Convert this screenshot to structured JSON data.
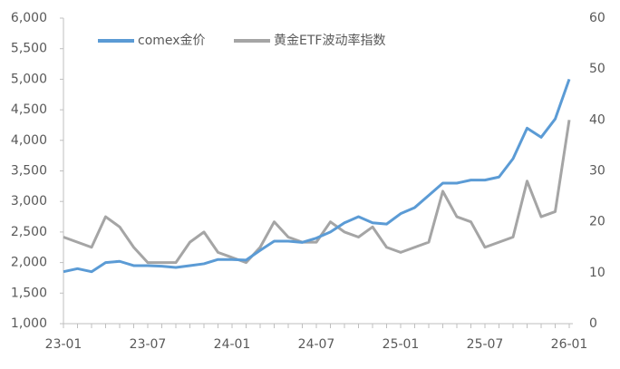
{
  "chart_data": {
    "type": "line",
    "categories": [
      "23-01",
      null,
      null,
      null,
      null,
      null,
      "23-07",
      null,
      null,
      null,
      null,
      null,
      "24-01",
      null,
      null,
      null,
      null,
      null,
      "24-07",
      null,
      null,
      null,
      null,
      null,
      "25-01",
      null,
      null,
      null,
      null,
      null,
      "25-07",
      null,
      null,
      null,
      null,
      null,
      "26-01"
    ],
    "series": [
      {
        "name": "comex金价",
        "color": "#5b9bd5",
        "values": [
          1850,
          1900,
          1850,
          2000,
          2020,
          1950,
          1950,
          1940,
          1920,
          1950,
          1980,
          2050,
          2050,
          2040,
          2200,
          2350,
          2350,
          2330,
          2400,
          2500,
          2650,
          2750,
          2650,
          2630,
          2800,
          2900,
          3100,
          3300,
          3300,
          3350,
          3350,
          3400,
          3700,
          4200,
          4050,
          4350,
          5000
        ]
      },
      {
        "name": "黄金ETF波动率指数",
        "color": "#a5a5a5",
        "axis": "y2",
        "values": [
          17,
          16,
          15,
          21,
          19,
          15,
          12,
          12,
          12,
          16,
          18,
          14,
          13,
          12,
          15,
          20,
          17,
          16,
          16,
          20,
          18,
          17,
          19,
          15,
          14,
          15,
          16,
          26,
          21,
          20,
          15,
          16,
          17,
          28,
          21,
          22,
          40
        ]
      }
    ],
    "ylim": [
      1000,
      6000
    ],
    "yticks": [
      {
        "value": 1000,
        "label": "1,000"
      },
      {
        "value": 1500,
        "label": "1,500"
      },
      {
        "value": 2000,
        "label": "2,000"
      },
      {
        "value": 2500,
        "label": "2,500"
      },
      {
        "value": 3000,
        "label": "3,000"
      },
      {
        "value": 3500,
        "label": "3,500"
      },
      {
        "value": 4000,
        "label": "4,000"
      },
      {
        "value": 4500,
        "label": "4,500"
      },
      {
        "value": 5000,
        "label": "5,000"
      },
      {
        "value": 5500,
        "label": "5,500"
      },
      {
        "value": 6000,
        "label": "6,000"
      }
    ],
    "y2lim": [
      0,
      60
    ],
    "y2ticks": [
      0,
      10,
      20,
      30,
      40,
      50,
      60
    ],
    "legend": "top-left"
  }
}
